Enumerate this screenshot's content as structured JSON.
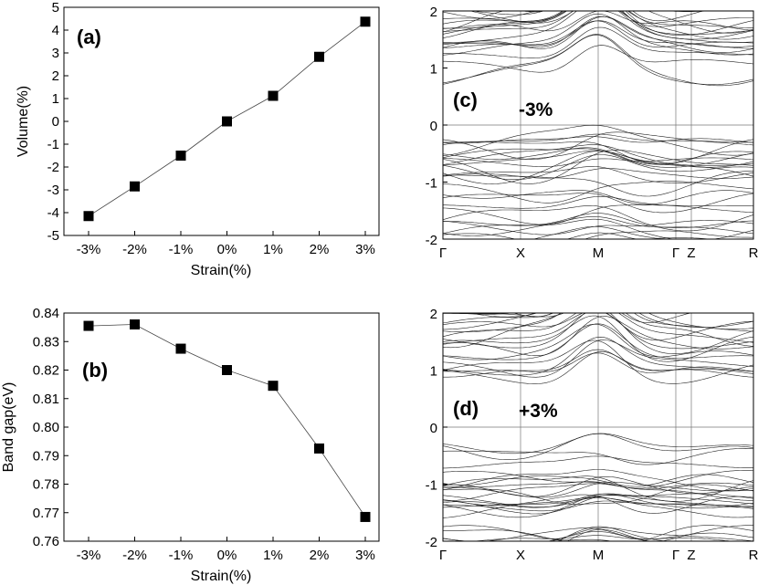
{
  "chart_data": [
    {
      "id": "a",
      "type": "line",
      "panel_label": "(a)",
      "xlabel": "Strain(%)",
      "ylabel": "Volume(%)",
      "categories": [
        "-3%",
        "-2%",
        "-1%",
        "0%",
        "1%",
        "2%",
        "3%"
      ],
      "values": [
        -4.15,
        -2.85,
        -1.5,
        0.0,
        1.12,
        2.83,
        4.37
      ],
      "ylim": [
        -5,
        5
      ],
      "yticks": [
        -5,
        -4,
        -3,
        -2,
        -1,
        0,
        1,
        2,
        3,
        4,
        5
      ],
      "ytick_labels": [
        "-5",
        "-4",
        "-3",
        "-2",
        "-1",
        "0",
        "1",
        "2",
        "3",
        "4",
        "5"
      ],
      "marker": "square",
      "grid": false
    },
    {
      "id": "b",
      "type": "line",
      "panel_label": "(b)",
      "xlabel": "Strain(%)",
      "ylabel": "Band gap(eV)",
      "categories": [
        "-3%",
        "-2%",
        "-1%",
        "0%",
        "1%",
        "2%",
        "3%"
      ],
      "values": [
        0.8355,
        0.836,
        0.8275,
        0.82,
        0.8145,
        0.7925,
        0.7685
      ],
      "ylim": [
        0.76,
        0.84
      ],
      "yticks": [
        0.76,
        0.77,
        0.78,
        0.79,
        0.8,
        0.81,
        0.82,
        0.83,
        0.84
      ],
      "ytick_labels": [
        "0.76",
        "0.77",
        "0.78",
        "0.79",
        "0.80",
        "0.81",
        "0.82",
        "0.83",
        "0.84"
      ],
      "marker": "square",
      "grid": false
    },
    {
      "id": "c",
      "type": "line",
      "panel_label": "(c)",
      "annotation": "-3%",
      "ylabel": "",
      "ylim": [
        -2,
        2
      ],
      "yticks": [
        -2,
        -1,
        0,
        1,
        2
      ],
      "ytick_labels": [
        "-2",
        "-1",
        "0",
        "1",
        "2"
      ],
      "kpoints": [
        "Γ",
        "X",
        "M",
        "Γ",
        "Z",
        "R"
      ],
      "kpath": [
        0,
        1,
        2,
        3,
        3.2,
        4
      ],
      "series_desc": "electronic band structure, many bands",
      "conduction_band_min": 0.82,
      "valence_band_max": -0.18
    },
    {
      "id": "d",
      "type": "line",
      "panel_label": "(d)",
      "annotation": "+3%",
      "ylabel": "",
      "ylim": [
        -2,
        2
      ],
      "yticks": [
        -2,
        -1,
        0,
        1,
        2
      ],
      "ytick_labels": [
        "-2",
        "-1",
        "0",
        "1",
        "2"
      ],
      "kpoints": [
        "Γ",
        "X",
        "M",
        "Γ",
        "Z",
        "R"
      ],
      "kpath": [
        0,
        1,
        2,
        3,
        3.2,
        4
      ],
      "series_desc": "electronic band structure, many bands",
      "conduction_band_min": 0.8,
      "valence_band_max": -0.28
    }
  ]
}
